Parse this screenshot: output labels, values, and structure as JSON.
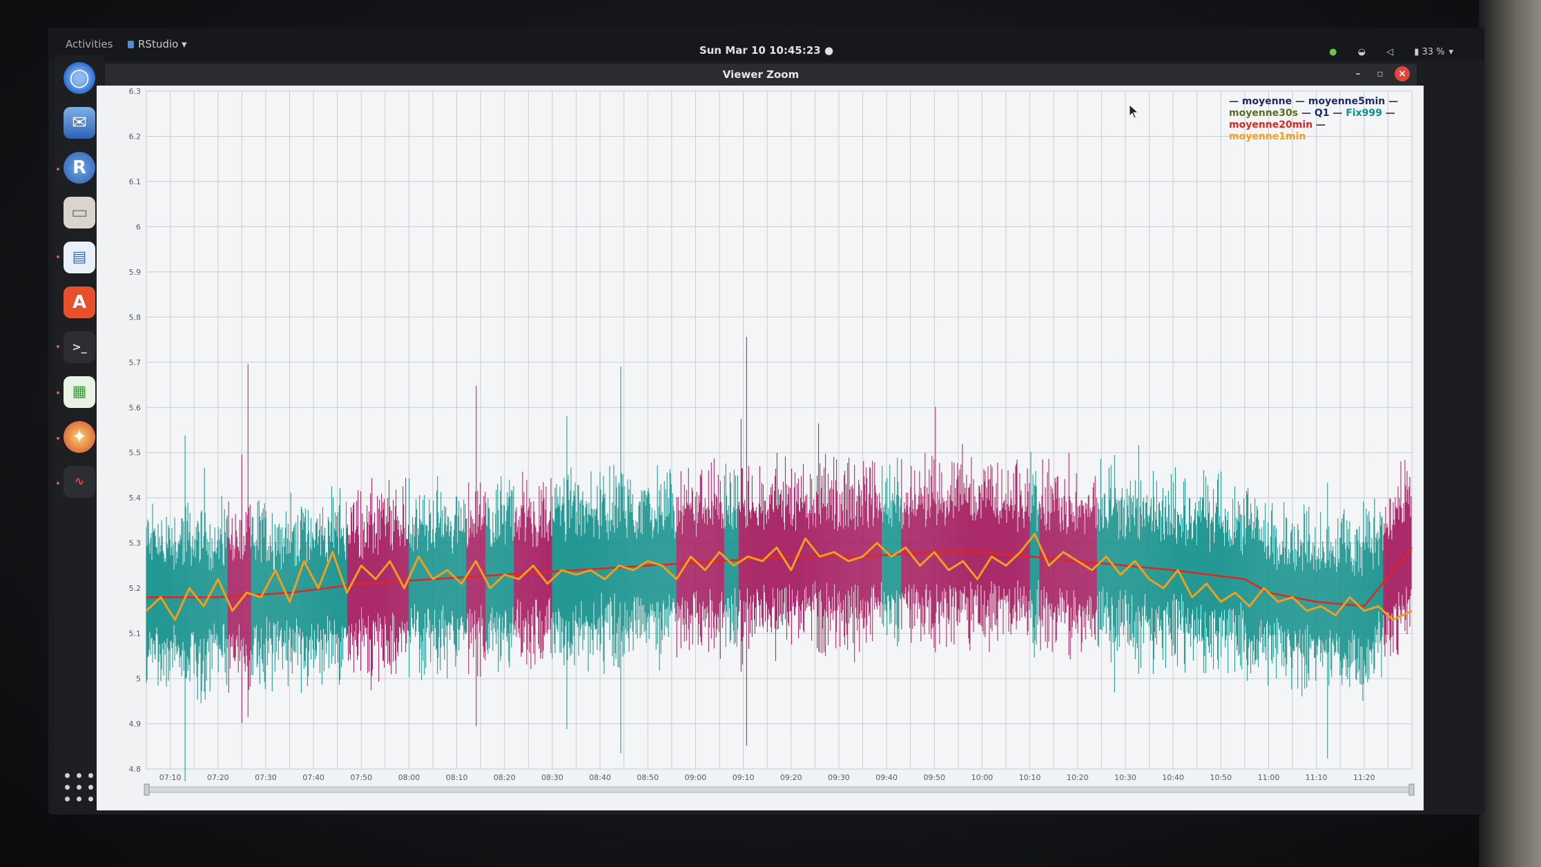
{
  "topbar": {
    "activities": "Activities",
    "app_menu": "RStudio ▾",
    "clock": "Sun Mar 10  10:45:23 ●",
    "battery": "33 %"
  },
  "window": {
    "title": "Viewer Zoom",
    "minimize": "–",
    "maximize": "▫",
    "close": "×"
  },
  "dock": {
    "icons": [
      "chromium-icon",
      "thunderbird-icon",
      "r-icon",
      "files-icon",
      "writer-icon",
      "software-center-icon",
      "terminal-icon",
      "calc-icon",
      "app-icon",
      "system-monitor-icon"
    ]
  },
  "colors": {
    "teal": "#0f8f8a",
    "magenta": "#a3175c",
    "orange": "#f0a01c",
    "red": "#e0261e",
    "navy": "#1c2a66",
    "olive": "#5b6b1f",
    "grid": "#c8ccd0"
  },
  "chart_data": {
    "type": "line",
    "title": "",
    "xlabel": "",
    "ylabel": "",
    "ylim": [
      4.8,
      6.3
    ],
    "yticks": [
      "6.3",
      "6.2",
      "6.1",
      "6",
      "5.9",
      "5.8",
      "5.7",
      "5.6",
      "5.5",
      "5.4",
      "5.3",
      "5.2",
      "5.1",
      "5",
      "4.9",
      "4.8"
    ],
    "xticks": [
      "07:10",
      "07:20",
      "07:30",
      "07:40",
      "07:50",
      "08:00",
      "08:10",
      "08:20",
      "08:30",
      "08:40",
      "08:50",
      "09:00",
      "09:10",
      "09:20",
      "09:30",
      "09:40",
      "09:50",
      "10:00",
      "10:10",
      "10:20",
      "10:30",
      "10:40",
      "10:50",
      "11:00",
      "11:10",
      "11:20"
    ],
    "x_range_minutes": [
      425,
      690
    ],
    "legend_position": "top-right",
    "legend": [
      {
        "name": "moyenne",
        "color": "#1c2a66"
      },
      {
        "name": "moyenne5min",
        "color": "#1c2a66"
      },
      {
        "name": "moyenne30s",
        "color": "#5b6b1f"
      },
      {
        "name": "Q1",
        "color": "#1c2a66"
      },
      {
        "name": "Fix999",
        "color": "#0f8f8a"
      },
      {
        "name": "moyenne20min",
        "color": "#e0261e"
      },
      {
        "name": "moyenne1min",
        "color": "#f0a01c"
      }
    ],
    "color_segments": [
      {
        "start": 425,
        "end": 442,
        "color": "teal"
      },
      {
        "start": 442,
        "end": 447,
        "color": "magenta"
      },
      {
        "start": 447,
        "end": 467,
        "color": "teal"
      },
      {
        "start": 467,
        "end": 480,
        "color": "magenta"
      },
      {
        "start": 480,
        "end": 492,
        "color": "teal"
      },
      {
        "start": 492,
        "end": 496,
        "color": "magenta"
      },
      {
        "start": 496,
        "end": 502,
        "color": "teal"
      },
      {
        "start": 502,
        "end": 510,
        "color": "magenta"
      },
      {
        "start": 510,
        "end": 536,
        "color": "teal"
      },
      {
        "start": 536,
        "end": 546,
        "color": "magenta"
      },
      {
        "start": 546,
        "end": 549,
        "color": "teal"
      },
      {
        "start": 549,
        "end": 579,
        "color": "magenta"
      },
      {
        "start": 579,
        "end": 583,
        "color": "teal"
      },
      {
        "start": 583,
        "end": 596,
        "color": "magenta"
      },
      {
        "start": 596,
        "end": 610,
        "color": "magenta"
      },
      {
        "start": 610,
        "end": 612,
        "color": "teal"
      },
      {
        "start": 612,
        "end": 624,
        "color": "magenta"
      },
      {
        "start": 624,
        "end": 688,
        "color": "teal"
      },
      {
        "start": 684,
        "end": 690,
        "color": "magenta"
      }
    ],
    "series": [
      {
        "name": "moyenne20min",
        "color": "red",
        "x": [
          425,
          440,
          455,
          470,
          485,
          500,
          515,
          530,
          545,
          560,
          575,
          590,
          600,
          610,
          620,
          640,
          655,
          660,
          670,
          680,
          690
        ],
        "values": [
          5.18,
          5.18,
          5.19,
          5.21,
          5.22,
          5.23,
          5.24,
          5.25,
          5.26,
          5.27,
          5.27,
          5.28,
          5.28,
          5.27,
          5.26,
          5.24,
          5.22,
          5.19,
          5.17,
          5.16,
          5.29
        ]
      },
      {
        "name": "moyenne1min",
        "color": "orange",
        "x": [
          425,
          428,
          431,
          434,
          437,
          440,
          443,
          446,
          449,
          452,
          455,
          458,
          461,
          464,
          467,
          470,
          473,
          476,
          479,
          482,
          485,
          488,
          491,
          494,
          497,
          500,
          503,
          506,
          509,
          512,
          515,
          518,
          521,
          524,
          527,
          530,
          533,
          536,
          539,
          542,
          545,
          548,
          551,
          554,
          557,
          560,
          563,
          566,
          569,
          572,
          575,
          578,
          581,
          584,
          587,
          590,
          593,
          596,
          599,
          602,
          605,
          608,
          611,
          614,
          617,
          620,
          623,
          626,
          629,
          632,
          635,
          638,
          641,
          644,
          647,
          650,
          653,
          656,
          659,
          662,
          665,
          668,
          671,
          674,
          677,
          680,
          683,
          686,
          690
        ],
        "values": [
          5.15,
          5.18,
          5.13,
          5.2,
          5.16,
          5.22,
          5.15,
          5.19,
          5.18,
          5.24,
          5.17,
          5.26,
          5.2,
          5.28,
          5.19,
          5.25,
          5.22,
          5.26,
          5.2,
          5.27,
          5.22,
          5.24,
          5.21,
          5.26,
          5.2,
          5.23,
          5.22,
          5.25,
          5.21,
          5.24,
          5.23,
          5.24,
          5.22,
          5.25,
          5.24,
          5.26,
          5.25,
          5.22,
          5.27,
          5.24,
          5.28,
          5.25,
          5.27,
          5.26,
          5.29,
          5.24,
          5.31,
          5.27,
          5.28,
          5.26,
          5.27,
          5.3,
          5.27,
          5.29,
          5.25,
          5.28,
          5.24,
          5.26,
          5.22,
          5.27,
          5.25,
          5.28,
          5.32,
          5.25,
          5.28,
          5.26,
          5.24,
          5.27,
          5.23,
          5.26,
          5.22,
          5.2,
          5.24,
          5.18,
          5.21,
          5.17,
          5.19,
          5.16,
          5.2,
          5.17,
          5.18,
          5.15,
          5.16,
          5.14,
          5.18,
          5.15,
          5.16,
          5.13,
          5.15
        ]
      }
    ]
  }
}
